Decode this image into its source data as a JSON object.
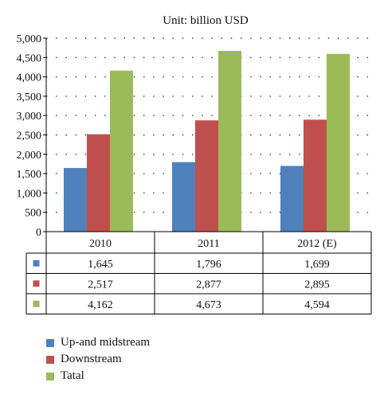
{
  "chart_data": {
    "type": "bar",
    "title": "Unit: billion USD",
    "categories": [
      "2010",
      "2011",
      "2012 (E)"
    ],
    "series": [
      {
        "name": "Up-and midstream",
        "color": "#4f81bd",
        "values": [
          1645,
          1796,
          1699
        ],
        "labels": [
          "1,645",
          "1,796",
          "1,699"
        ]
      },
      {
        "name": "Downstream",
        "color": "#c0504d",
        "values": [
          2517,
          2877,
          2895
        ],
        "labels": [
          "2,517",
          "2,877",
          "2,895"
        ]
      },
      {
        "name": "Tatal",
        "color": "#9bbb59",
        "values": [
          4162,
          4673,
          4594
        ],
        "labels": [
          "4,162",
          "4,673",
          "4,594"
        ]
      }
    ],
    "ylim": [
      0,
      5000
    ],
    "yticks": [
      "0",
      "500",
      "1,000",
      "1,500",
      "2,000",
      "2,500",
      "3,000",
      "3,500",
      "4,000",
      "4,500",
      "5,000"
    ],
    "grid": "dotted-horizontal",
    "legend_position": "bottom-left",
    "data_table": true
  }
}
